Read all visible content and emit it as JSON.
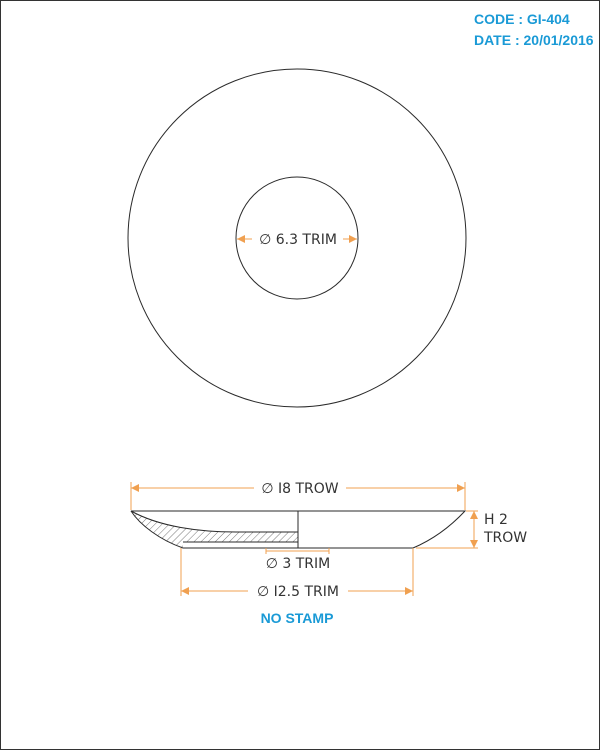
{
  "header": {
    "code": "CODE : GI-404",
    "date": "DATE : 20/01/2016"
  },
  "dimensions": {
    "inner_diameter": "∅ 6.3 TRIM",
    "outer_diameter": "∅ I8 TROW",
    "height_line1": "H 2",
    "height_line2": "TROW",
    "hole_diameter": "∅ 3 TRIM",
    "base_diameter": "∅ I2.5 TRIM"
  },
  "note": "NO STAMP",
  "colors": {
    "accent": "#1a9ad6",
    "dimension": "#f0a050",
    "outline": "#2a2a2a"
  }
}
